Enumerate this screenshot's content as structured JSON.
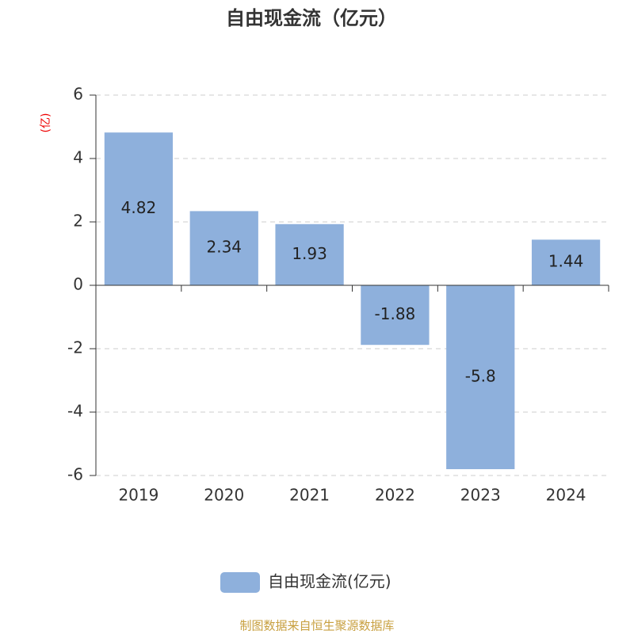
{
  "chart_data": {
    "type": "bar",
    "title": "自由现金流（亿元）",
    "y_label": "(亿)",
    "categories": [
      "2019",
      "2020",
      "2021",
      "2022",
      "2023",
      "2024"
    ],
    "series": [
      {
        "name": "自由现金流(亿元)",
        "color": "#8eb0dc",
        "values": [
          4.82,
          2.34,
          1.93,
          -1.88,
          -5.8,
          1.44
        ]
      }
    ],
    "ylim": [
      -6,
      6
    ],
    "yticks": [
      -6,
      -4,
      -2,
      0,
      2,
      4,
      6
    ],
    "grid": true,
    "source": "制图数据来自恒生聚源数据库"
  }
}
